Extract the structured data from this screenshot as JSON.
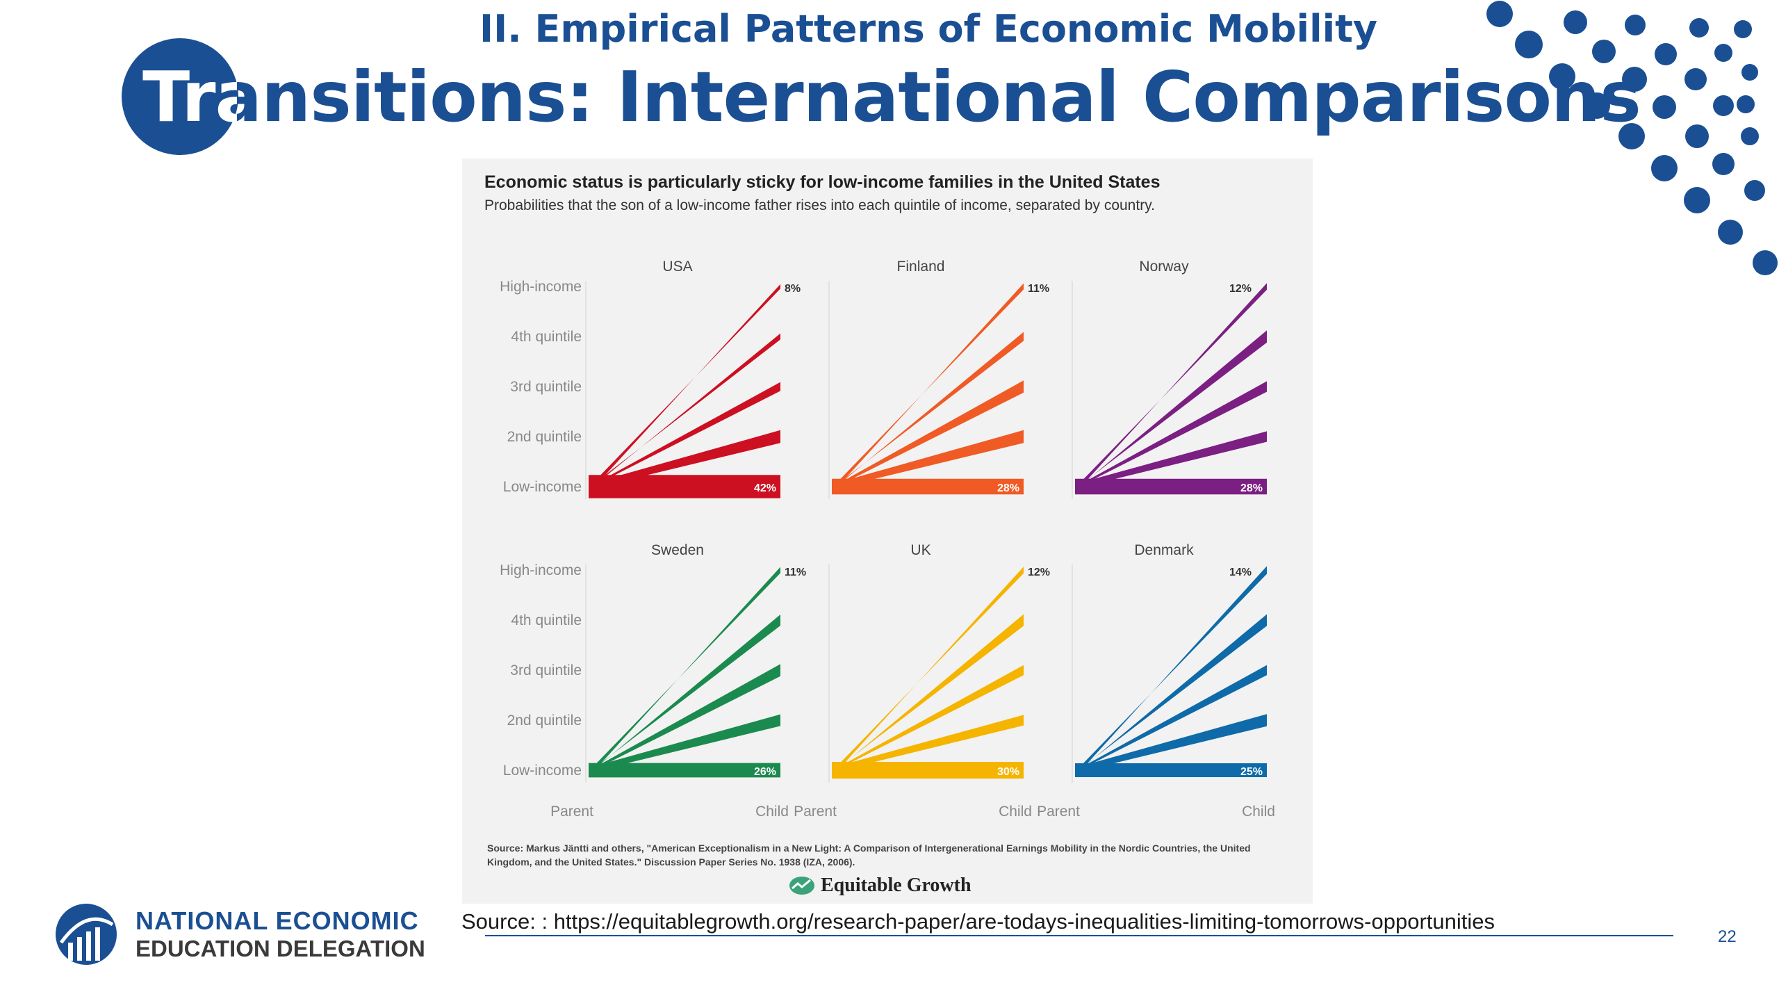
{
  "slide": {
    "subtitle": "II. Empirical Patterns of Economic Mobility",
    "title": "Transitions: International Comparisons",
    "page_number": "22",
    "source_prefix": "Source:  : ",
    "source_link": "https://equitablegrowth.org/research-paper/are-todays-inequalities-limiting-tomorrows-opportunities",
    "org_line1": "NATIONAL ECONOMIC",
    "org_line2": "EDUCATION DELEGATION",
    "brand_color": "#1b4f93"
  },
  "chart_data": {
    "type": "line",
    "title": "Economic status is particularly sticky for low-income families in the United States",
    "subtitle": "Probabilities that the son of a low-income father rises into each quintile of income, separated by country.",
    "x_labels": [
      "Parent",
      "Child"
    ],
    "y_categories": [
      "Low-income",
      "2nd quintile",
      "3rd quintile",
      "4th quintile",
      "High-income"
    ],
    "panels": [
      {
        "name": "USA",
        "color": "#cc1021",
        "low_label": "42%",
        "high_label": "8%",
        "values": [
          42,
          23,
          16,
          11,
          8
        ]
      },
      {
        "name": "Finland",
        "color": "#f05a24",
        "low_label": "28%",
        "high_label": "11%",
        "values": [
          28,
          23,
          22,
          16,
          11
        ]
      },
      {
        "name": "Norway",
        "color": "#7b1f82",
        "low_label": "28%",
        "high_label": "12%",
        "values": [
          28,
          19,
          19,
          22,
          12
        ]
      },
      {
        "name": "Sweden",
        "color": "#1b8a4e",
        "low_label": "26%",
        "high_label": "11%",
        "values": [
          26,
          21,
          22,
          20,
          11
        ]
      },
      {
        "name": "UK",
        "color": "#f5b400",
        "low_label": "30%",
        "high_label": "12%",
        "values": [
          30,
          19,
          18,
          21,
          12
        ]
      },
      {
        "name": "Denmark",
        "color": "#0e6aa8",
        "low_label": "25%",
        "high_label": "14%",
        "values": [
          25,
          22,
          18,
          21,
          14
        ]
      }
    ],
    "source_note": "Source: Markus Jäntti and others, \"American Exceptionalism in a New Light: A Comparison of Intergenerational Earnings Mobility in the Nordic Countries, the United Kingdom, and the United States.\" Discussion Paper Series No. 1938 (IZA, 2006).",
    "logo_text": "Equitable Growth",
    "legend": "none",
    "grid": false
  }
}
